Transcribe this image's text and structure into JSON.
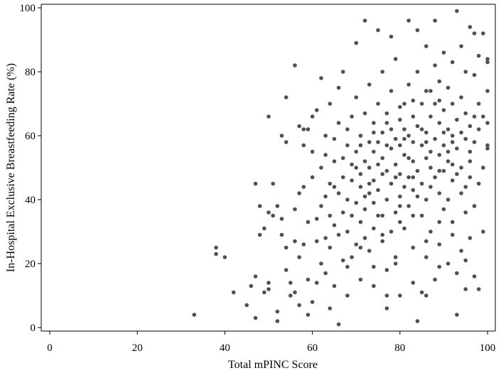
{
  "chart_data": {
    "type": "scatter",
    "xlabel": "Total mPINC Score",
    "ylabel": "In-Hospital Exclusive Breastfeeding Rate (%)",
    "xlim": [
      0,
      100
    ],
    "ylim": [
      0,
      100
    ],
    "xticks": [
      "0",
      "20",
      "40",
      "60",
      "80",
      "100"
    ],
    "yticks": [
      "0",
      "20",
      "40",
      "60",
      "80",
      "100"
    ],
    "grid": false,
    "point_color": "#505050",
    "points": [
      [
        33,
        4
      ],
      [
        38,
        25
      ],
      [
        38,
        23
      ],
      [
        40,
        22
      ],
      [
        42,
        11
      ],
      [
        45,
        7
      ],
      [
        46,
        13
      ],
      [
        47,
        3
      ],
      [
        47,
        16
      ],
      [
        47,
        45
      ],
      [
        48,
        38
      ],
      [
        48,
        29
      ],
      [
        49,
        31
      ],
      [
        49,
        11
      ],
      [
        50,
        14
      ],
      [
        50,
        12
      ],
      [
        50,
        66
      ],
      [
        50,
        36
      ],
      [
        51,
        35
      ],
      [
        51,
        45
      ],
      [
        52,
        5
      ],
      [
        52,
        2
      ],
      [
        52,
        38
      ],
      [
        53,
        34
      ],
      [
        53,
        60
      ],
      [
        53,
        29
      ],
      [
        54,
        25
      ],
      [
        54,
        18
      ],
      [
        54,
        58
      ],
      [
        54,
        72
      ],
      [
        55,
        10
      ],
      [
        55,
        14
      ],
      [
        56,
        11
      ],
      [
        56,
        82
      ],
      [
        56,
        27
      ],
      [
        56,
        37
      ],
      [
        57,
        63
      ],
      [
        57,
        22
      ],
      [
        57,
        42
      ],
      [
        57,
        7
      ],
      [
        58,
        62
      ],
      [
        58,
        26
      ],
      [
        58,
        57
      ],
      [
        58,
        44
      ],
      [
        59,
        62
      ],
      [
        59,
        15
      ],
      [
        59,
        33
      ],
      [
        59,
        4
      ],
      [
        60,
        8
      ],
      [
        60,
        47
      ],
      [
        60,
        66
      ],
      [
        60,
        55
      ],
      [
        61,
        68
      ],
      [
        61,
        27
      ],
      [
        61,
        34
      ],
      [
        61,
        14
      ],
      [
        62,
        78
      ],
      [
        62,
        50
      ],
      [
        62,
        38
      ],
      [
        62,
        20
      ],
      [
        63,
        54
      ],
      [
        63,
        28
      ],
      [
        63,
        41
      ],
      [
        63,
        60
      ],
      [
        63,
        17
      ],
      [
        64,
        70
      ],
      [
        64,
        35
      ],
      [
        64,
        25
      ],
      [
        64,
        6
      ],
      [
        64,
        45
      ],
      [
        65,
        44
      ],
      [
        65,
        59
      ],
      [
        65,
        32
      ],
      [
        65,
        52
      ],
      [
        65,
        13
      ],
      [
        66,
        75
      ],
      [
        66,
        1
      ],
      [
        66,
        42
      ],
      [
        66,
        64
      ],
      [
        66,
        29
      ],
      [
        67,
        80
      ],
      [
        67,
        53
      ],
      [
        67,
        36
      ],
      [
        67,
        21
      ],
      [
        67,
        47
      ],
      [
        68,
        57
      ],
      [
        68,
        40
      ],
      [
        68,
        10
      ],
      [
        68,
        30
      ],
      [
        68,
        62
      ],
      [
        69,
        46
      ],
      [
        69,
        66
      ],
      [
        69,
        22
      ],
      [
        69,
        35
      ],
      [
        69,
        51
      ],
      [
        70,
        89
      ],
      [
        70,
        55
      ],
      [
        70,
        39
      ],
      [
        70,
        26
      ],
      [
        70,
        72
      ],
      [
        71,
        44
      ],
      [
        71,
        60
      ],
      [
        71,
        33
      ],
      [
        71,
        48
      ],
      [
        71,
        15
      ],
      [
        72,
        96
      ],
      [
        72,
        52
      ],
      [
        72,
        37
      ],
      [
        72,
        67
      ],
      [
        72,
        28
      ],
      [
        73,
        58
      ],
      [
        73,
        42
      ],
      [
        73,
        76
      ],
      [
        73,
        24
      ],
      [
        73,
        50
      ],
      [
        74,
        64
      ],
      [
        74,
        46
      ],
      [
        74,
        31
      ],
      [
        74,
        55
      ],
      [
        74,
        19
      ],
      [
        75,
        93
      ],
      [
        75,
        58
      ],
      [
        75,
        43
      ],
      [
        75,
        70
      ],
      [
        75,
        35
      ],
      [
        76,
        61
      ],
      [
        76,
        48
      ],
      [
        76,
        80
      ],
      [
        76,
        27
      ],
      [
        76,
        53
      ],
      [
        77,
        57
      ],
      [
        77,
        40
      ],
      [
        77,
        67
      ],
      [
        77,
        10
      ],
      [
        77,
        6
      ],
      [
        78,
        91
      ],
      [
        78,
        62
      ],
      [
        78,
        45
      ],
      [
        78,
        30
      ],
      [
        78,
        74
      ],
      [
        79,
        59
      ],
      [
        79,
        51
      ],
      [
        79,
        36
      ],
      [
        79,
        84
      ],
      [
        79,
        20
      ],
      [
        80,
        65
      ],
      [
        80,
        48
      ],
      [
        80,
        57
      ],
      [
        80,
        10
      ],
      [
        80,
        41
      ],
      [
        81,
        70
      ],
      [
        81,
        54
      ],
      [
        81,
        44
      ],
      [
        81,
        62
      ],
      [
        81,
        31
      ],
      [
        82,
        96
      ],
      [
        82,
        60
      ],
      [
        82,
        47
      ],
      [
        82,
        76
      ],
      [
        82,
        38
      ],
      [
        83,
        66
      ],
      [
        83,
        52
      ],
      [
        83,
        58
      ],
      [
        83,
        25
      ],
      [
        83,
        43
      ],
      [
        84,
        93
      ],
      [
        84,
        63
      ],
      [
        84,
        49
      ],
      [
        84,
        80
      ],
      [
        84,
        2
      ],
      [
        85,
        57
      ],
      [
        85,
        45
      ],
      [
        85,
        70
      ],
      [
        85,
        35
      ],
      [
        85,
        11
      ],
      [
        86,
        61
      ],
      [
        86,
        53
      ],
      [
        86,
        88
      ],
      [
        86,
        40
      ],
      [
        86,
        22
      ],
      [
        87,
        66
      ],
      [
        87,
        50
      ],
      [
        87,
        74
      ],
      [
        87,
        44
      ],
      [
        87,
        30
      ],
      [
        88,
        96
      ],
      [
        88,
        59
      ],
      [
        88,
        47
      ],
      [
        88,
        82
      ],
      [
        88,
        15
      ],
      [
        89,
        64
      ],
      [
        89,
        54
      ],
      [
        89,
        42
      ],
      [
        89,
        71
      ],
      [
        89,
        26
      ],
      [
        90,
        68
      ],
      [
        90,
        57
      ],
      [
        90,
        49
      ],
      [
        90,
        86
      ],
      [
        90,
        37
      ],
      [
        91,
        62
      ],
      [
        91,
        52
      ],
      [
        91,
        75
      ],
      [
        91,
        40
      ],
      [
        91,
        20
      ],
      [
        92,
        60
      ],
      [
        92,
        46
      ],
      [
        92,
        83
      ],
      [
        92,
        33
      ],
      [
        92,
        70
      ],
      [
        93,
        99
      ],
      [
        93,
        56
      ],
      [
        93,
        4
      ],
      [
        93,
        65
      ],
      [
        93,
        17
      ],
      [
        94,
        88
      ],
      [
        94,
        50
      ],
      [
        94,
        72
      ],
      [
        94,
        42
      ],
      [
        94,
        24
      ],
      [
        95,
        67
      ],
      [
        95,
        59
      ],
      [
        95,
        80
      ],
      [
        95,
        36
      ],
      [
        95,
        12
      ],
      [
        96,
        94
      ],
      [
        96,
        63
      ],
      [
        96,
        47
      ],
      [
        96,
        55
      ],
      [
        96,
        28
      ],
      [
        97,
        79
      ],
      [
        97,
        58
      ],
      [
        97,
        38
      ],
      [
        97,
        92
      ],
      [
        97,
        16
      ],
      [
        98,
        12
      ],
      [
        98,
        85
      ],
      [
        98,
        62
      ],
      [
        98,
        45
      ],
      [
        98,
        70
      ],
      [
        99,
        92
      ],
      [
        99,
        50
      ],
      [
        99,
        66
      ],
      [
        99,
        30
      ],
      [
        100,
        84
      ],
      [
        100,
        74
      ],
      [
        100,
        57
      ],
      [
        100,
        64
      ],
      [
        100,
        83
      ],
      [
        100,
        56
      ],
      [
        76,
        29
      ],
      [
        79,
        22
      ],
      [
        83,
        35
      ],
      [
        86,
        27
      ],
      [
        89,
        19
      ],
      [
        72,
        41
      ],
      [
        75,
        51
      ],
      [
        78,
        56
      ],
      [
        81,
        59
      ],
      [
        84,
        41
      ],
      [
        87,
        55
      ],
      [
        90,
        61
      ],
      [
        93,
        48
      ],
      [
        96,
        52
      ],
      [
        74,
        61
      ],
      [
        77,
        64
      ],
      [
        80,
        69
      ],
      [
        83,
        71
      ],
      [
        86,
        74
      ],
      [
        89,
        77
      ],
      [
        92,
        58
      ],
      [
        95,
        44
      ],
      [
        70,
        50
      ],
      [
        73,
        45
      ],
      [
        76,
        35
      ],
      [
        79,
        47
      ],
      [
        82,
        53
      ],
      [
        85,
        62
      ],
      [
        88,
        70
      ],
      [
        91,
        55
      ],
      [
        94,
        61
      ],
      [
        97,
        66
      ],
      [
        71,
        57
      ],
      [
        74,
        39
      ],
      [
        77,
        49
      ],
      [
        80,
        38
      ],
      [
        83,
        47
      ],
      [
        86,
        58
      ],
      [
        89,
        49
      ],
      [
        92,
        51
      ],
      [
        68,
        19
      ],
      [
        71,
        25
      ],
      [
        74,
        13
      ],
      [
        77,
        18
      ],
      [
        80,
        33
      ],
      [
        83,
        14
      ],
      [
        86,
        10
      ],
      [
        89,
        33
      ],
      [
        92,
        29
      ],
      [
        95,
        21
      ]
    ]
  }
}
